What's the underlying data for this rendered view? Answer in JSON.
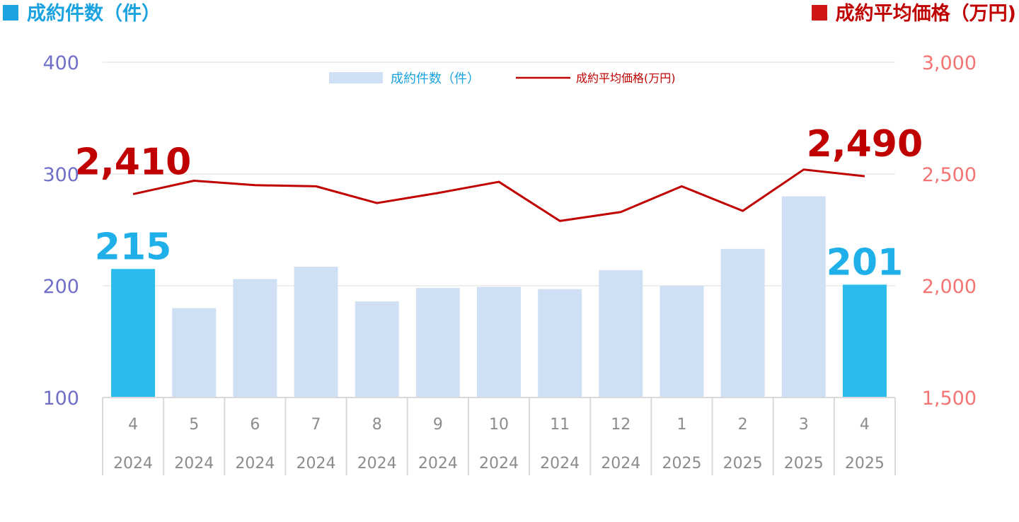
{
  "titles": {
    "left": "成約件数（件）",
    "right": "成約平均価格（万円)"
  },
  "colors": {
    "bar": "#cfe0f4",
    "bar_highlight": "#29bbec",
    "line": "#c00000",
    "left_axis": "#6f6fc8",
    "right_axis": "#f47373"
  },
  "chart_data": {
    "type": "bar",
    "categories": [
      "4",
      "5",
      "6",
      "7",
      "8",
      "9",
      "10",
      "11",
      "12",
      "1",
      "2",
      "3",
      "4"
    ],
    "years": [
      "2024",
      "2024",
      "2024",
      "2024",
      "2024",
      "2024",
      "2024",
      "2024",
      "2024",
      "2025",
      "2025",
      "2025",
      "2025"
    ],
    "series": [
      {
        "name": "成約件数（件）",
        "type": "bar",
        "axis": "left",
        "values": [
          215,
          180,
          206,
          217,
          186,
          198,
          199,
          197,
          214,
          200,
          233,
          280,
          201
        ],
        "highlight": [
          true,
          false,
          false,
          false,
          false,
          false,
          false,
          false,
          false,
          false,
          false,
          false,
          true
        ]
      },
      {
        "name": "成約平均価格(万円)",
        "type": "line",
        "axis": "right",
        "values": [
          2410,
          2470,
          2450,
          2445,
          2370,
          2415,
          2465,
          2290,
          2330,
          2445,
          2335,
          2520,
          2490
        ]
      }
    ],
    "y_left": {
      "min": 100,
      "max": 400,
      "ticks": [
        "100",
        "200",
        "300",
        "400"
      ]
    },
    "y_right": {
      "min": 1500,
      "max": 3000,
      "ticks": [
        "1,500",
        "2,000",
        "2,500",
        "3,000"
      ]
    },
    "legend_position": "top-center",
    "grid": true,
    "callouts": [
      {
        "series": "line",
        "index": 0,
        "text": "2,410"
      },
      {
        "series": "line",
        "index": 12,
        "text": "2,490"
      },
      {
        "series": "bar",
        "index": 0,
        "text": "215"
      },
      {
        "series": "bar",
        "index": 12,
        "text": "201"
      }
    ]
  }
}
